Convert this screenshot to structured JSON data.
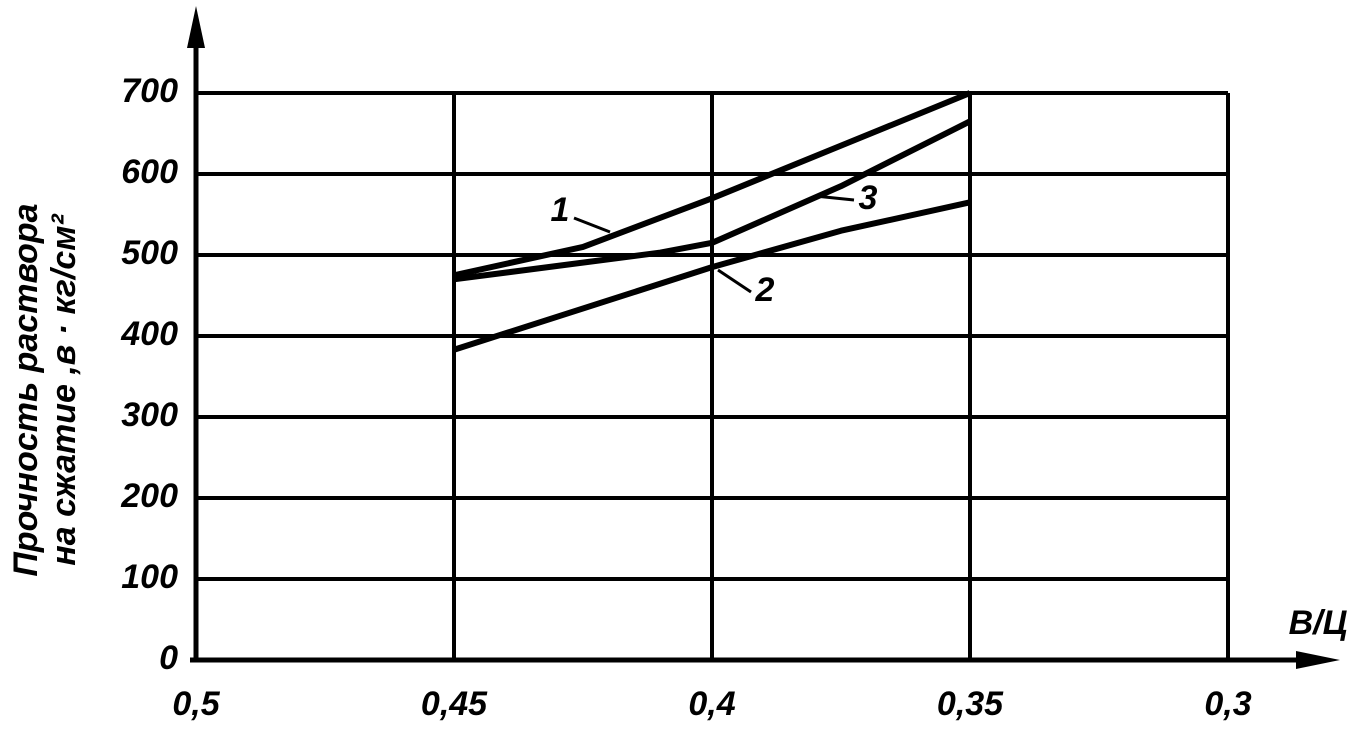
{
  "chart_data": {
    "type": "line",
    "ylabel": [
      "Прочность раствора",
      "на сжатие ,в · кг/см²"
    ],
    "xlabel": "В/Ц",
    "xlim": [
      0.5,
      0.3
    ],
    "xticks": [
      {
        "value": 0.5,
        "label": "0,5"
      },
      {
        "value": 0.45,
        "label": "0,45"
      },
      {
        "value": 0.4,
        "label": "0,4"
      },
      {
        "value": 0.35,
        "label": "0,35"
      },
      {
        "value": 0.3,
        "label": "0,3"
      }
    ],
    "ylim": [
      0,
      700
    ],
    "yticks": [
      0,
      100,
      200,
      300,
      400,
      500,
      600,
      700
    ],
    "grid": true,
    "series": [
      {
        "name": "1",
        "color": "#000000",
        "x": [
          0.45,
          0.425,
          0.4,
          0.375,
          0.35
        ],
        "values": [
          475,
          510,
          570,
          635,
          700
        ]
      },
      {
        "name": "2",
        "color": "#000000",
        "x": [
          0.45,
          0.4,
          0.375,
          0.35
        ],
        "values": [
          383,
          485,
          530,
          565
        ]
      },
      {
        "name": "3",
        "color": "#000000",
        "x": [
          0.45,
          0.41,
          0.4,
          0.375,
          0.35
        ],
        "values": [
          470,
          503,
          515,
          585,
          665
        ]
      }
    ]
  }
}
